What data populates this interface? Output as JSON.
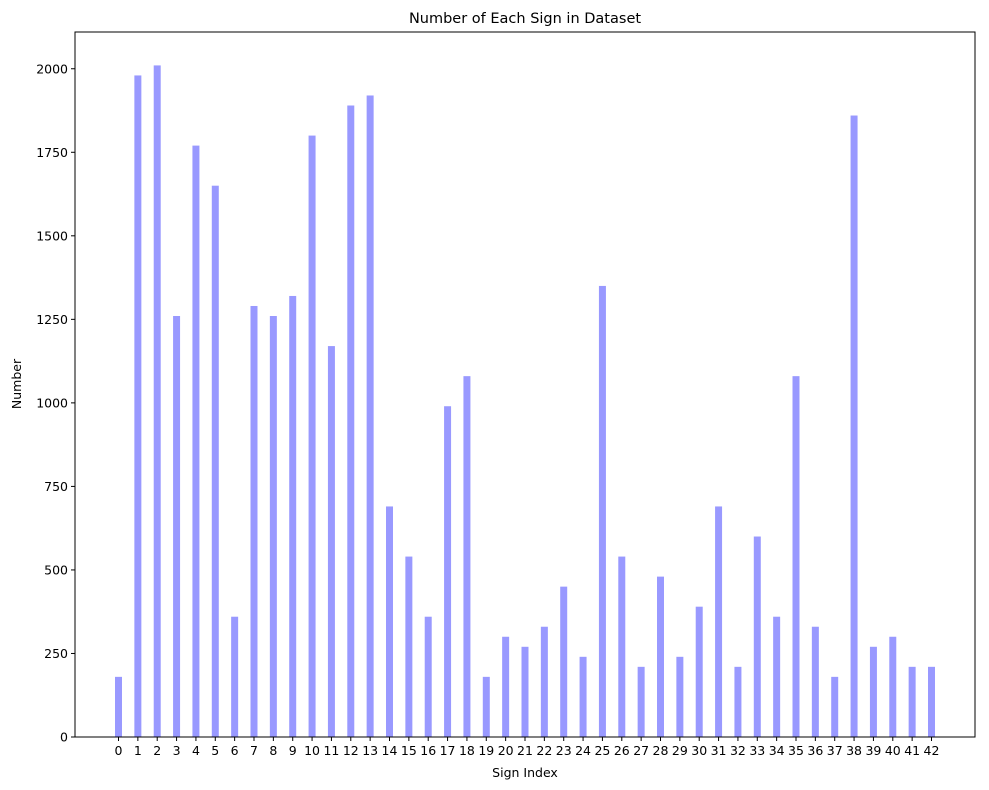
{
  "chart_data": {
    "type": "bar",
    "title": "Number of Each Sign in Dataset",
    "xlabel": "Sign Index",
    "ylabel": "Number",
    "categories": [
      "0",
      "1",
      "2",
      "3",
      "4",
      "5",
      "6",
      "7",
      "8",
      "9",
      "10",
      "11",
      "12",
      "13",
      "14",
      "15",
      "16",
      "17",
      "18",
      "19",
      "20",
      "21",
      "22",
      "23",
      "24",
      "25",
      "26",
      "27",
      "28",
      "29",
      "30",
      "31",
      "32",
      "33",
      "34",
      "35",
      "36",
      "37",
      "38",
      "39",
      "40",
      "41",
      "42"
    ],
    "values": [
      180,
      1980,
      2010,
      1260,
      1770,
      1650,
      360,
      1290,
      1260,
      1320,
      1800,
      1170,
      1890,
      1920,
      690,
      540,
      360,
      990,
      1080,
      180,
      300,
      270,
      330,
      450,
      240,
      1350,
      540,
      210,
      480,
      240,
      390,
      690,
      210,
      600,
      360,
      1080,
      330,
      180,
      1860,
      270,
      300,
      210,
      210
    ],
    "ylim": [
      0,
      2110
    ],
    "yticks": [
      "0",
      "250",
      "500",
      "750",
      "1000",
      "1250",
      "1500",
      "1750",
      "2000"
    ],
    "bar_color": "#9999ff",
    "grid": false
  }
}
